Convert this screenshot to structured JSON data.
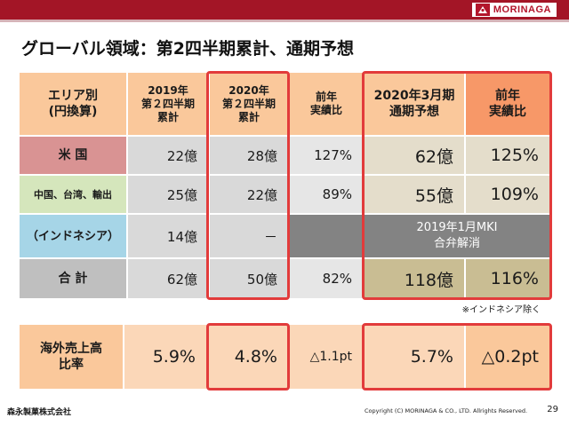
{
  "header": {
    "logo_text": "MORINAGA",
    "brand_color": "#a31526"
  },
  "title": "グローバル領域：第2四半期累計、通期予想",
  "table": {
    "columns": {
      "area": [
        "エリア別",
        "(円換算)"
      ],
      "fy2019_q2": [
        "2019年",
        "第２四半期",
        "累計"
      ],
      "fy2020_q2": [
        "2020年",
        "第２四半期",
        "累計"
      ],
      "yoy": [
        "前年",
        "実績比"
      ],
      "fy_forecast": [
        "2020年3月期",
        "通期予想"
      ],
      "fy_yoy": [
        "前年",
        "実績比"
      ]
    },
    "rows": [
      {
        "area": "米 国",
        "fy2019_q2": "22億",
        "fy2020_q2": "28億",
        "yoy": "127%",
        "fy_forecast": "62億",
        "fy_yoy": "125%"
      },
      {
        "area": "中国、台湾、輸出",
        "fy2019_q2": "25億",
        "fy2020_q2": "22億",
        "yoy": "89%",
        "fy_forecast": "55億",
        "fy_yoy": "109%"
      },
      {
        "area": "（インドネシア）",
        "fy2019_q2": "14億",
        "fy2020_q2": "－",
        "merged_note": [
          "2019年1月MKI",
          "合弁解消"
        ]
      },
      {
        "area": "合 計",
        "fy2019_q2": "62億",
        "fy2020_q2": "50億",
        "yoy": "82%",
        "fy_forecast": "118億",
        "fy_yoy": "116%"
      }
    ],
    "footnote": "※インドネシア除く"
  },
  "overseas": {
    "label": [
      "海外売上高",
      "比率"
    ],
    "fy2019_q2": "5.9%",
    "fy2020_q2": "4.8%",
    "yoy": "△1.1pt",
    "fy_forecast": "5.7%",
    "fy_yoy": "△0.2pt"
  },
  "footer": {
    "company": "森永製菓株式会社",
    "copyright": "Copyright (C) MORINAGA & CO., LTD. Allrights Reserved.",
    "page": "29"
  }
}
